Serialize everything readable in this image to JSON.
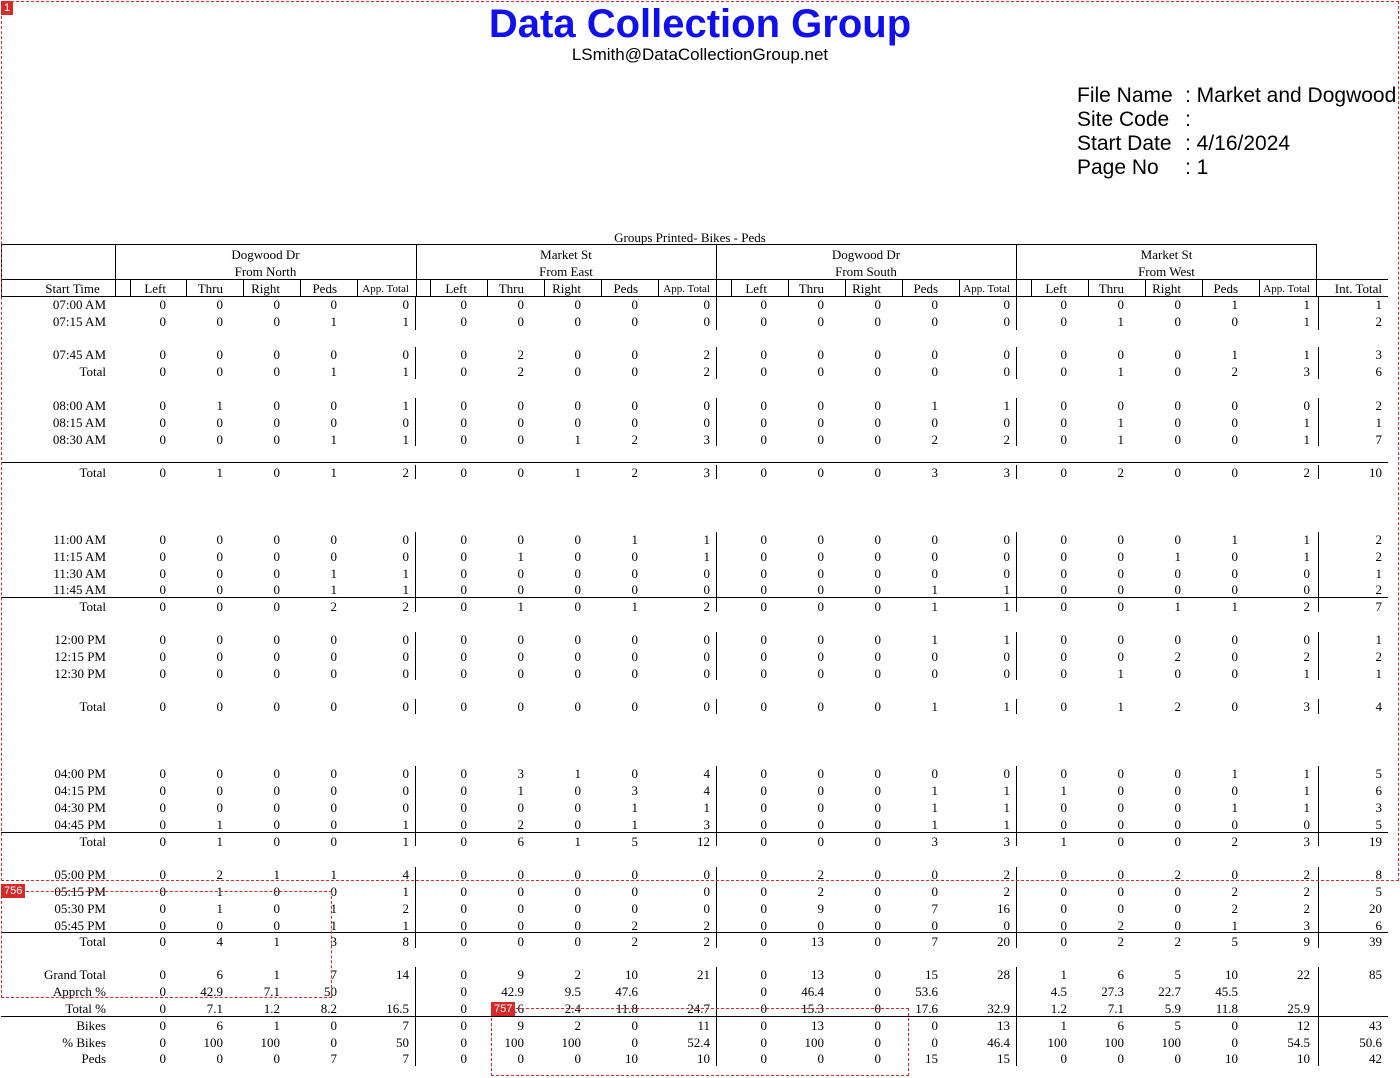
{
  "header": {
    "title": "Data Collection Group",
    "email": "LSmith@DataCollectionGroup.net",
    "meta": [
      {
        "label": "File Name",
        "value": ": Market and Dogwood"
      },
      {
        "label": "Site Code",
        "value": ":"
      },
      {
        "label": "Start Date",
        "value": ": 4/16/2024"
      },
      {
        "label": "Page No",
        "value": ": 1"
      }
    ],
    "groups_printed": "Groups Printed- Bikes - Peds"
  },
  "approaches": [
    {
      "street": "Dogwood Dr",
      "direction": "From North"
    },
    {
      "street": "Market St",
      "direction": "From East"
    },
    {
      "street": "Dogwood Dr",
      "direction": "From South"
    },
    {
      "street": "Market St",
      "direction": "From West"
    }
  ],
  "columns": {
    "start_time": "Start Time",
    "movements": [
      "Left",
      "Thru",
      "Right",
      "Peds",
      "App. Total"
    ],
    "int_total": "Int. Total"
  },
  "rows": [
    {
      "label": "07:00 AM",
      "values": [
        "0",
        "0",
        "0",
        "0",
        "0",
        "0",
        "0",
        "0",
        "0",
        "0",
        "0",
        "0",
        "0",
        "0",
        "0",
        "0",
        "0",
        "0",
        "1",
        "1",
        "1"
      ]
    },
    {
      "label": "07:15 AM",
      "values": [
        "0",
        "0",
        "0",
        "1",
        "1",
        "0",
        "0",
        "0",
        "0",
        "0",
        "0",
        "0",
        "0",
        "0",
        "0",
        "0",
        "1",
        "0",
        "0",
        "1",
        "2"
      ]
    },
    {
      "label": "07:45 AM",
      "values": [
        "0",
        "0",
        "0",
        "0",
        "0",
        "0",
        "2",
        "0",
        "0",
        "2",
        "0",
        "0",
        "0",
        "0",
        "0",
        "0",
        "0",
        "0",
        "1",
        "1",
        "3"
      ]
    },
    {
      "label": "Total",
      "values": [
        "0",
        "0",
        "0",
        "1",
        "1",
        "0",
        "2",
        "0",
        "0",
        "2",
        "0",
        "0",
        "0",
        "0",
        "0",
        "0",
        "1",
        "0",
        "2",
        "3",
        "6"
      ]
    },
    {
      "label": "08:00 AM",
      "values": [
        "0",
        "1",
        "0",
        "0",
        "1",
        "0",
        "0",
        "0",
        "0",
        "0",
        "0",
        "0",
        "0",
        "1",
        "1",
        "0",
        "0",
        "0",
        "0",
        "0",
        "2"
      ]
    },
    {
      "label": "08:15 AM",
      "values": [
        "0",
        "0",
        "0",
        "0",
        "0",
        "0",
        "0",
        "0",
        "0",
        "0",
        "0",
        "0",
        "0",
        "0",
        "0",
        "0",
        "1",
        "0",
        "0",
        "1",
        "1"
      ]
    },
    {
      "label": "08:30 AM",
      "values": [
        "0",
        "0",
        "0",
        "1",
        "1",
        "0",
        "0",
        "1",
        "2",
        "3",
        "0",
        "0",
        "0",
        "2",
        "2",
        "0",
        "1",
        "0",
        "0",
        "1",
        "7"
      ]
    },
    {
      "label": "Total",
      "values": [
        "0",
        "1",
        "0",
        "1",
        "2",
        "0",
        "0",
        "1",
        "2",
        "3",
        "0",
        "0",
        "0",
        "3",
        "3",
        "0",
        "2",
        "0",
        "0",
        "2",
        "10"
      ]
    },
    {
      "label": "11:00 AM",
      "values": [
        "0",
        "0",
        "0",
        "0",
        "0",
        "0",
        "0",
        "0",
        "1",
        "1",
        "0",
        "0",
        "0",
        "0",
        "0",
        "0",
        "0",
        "0",
        "1",
        "1",
        "2"
      ]
    },
    {
      "label": "11:15 AM",
      "values": [
        "0",
        "0",
        "0",
        "0",
        "0",
        "0",
        "1",
        "0",
        "0",
        "1",
        "0",
        "0",
        "0",
        "0",
        "0",
        "0",
        "0",
        "1",
        "0",
        "1",
        "2"
      ]
    },
    {
      "label": "11:30 AM",
      "values": [
        "0",
        "0",
        "0",
        "1",
        "1",
        "0",
        "0",
        "0",
        "0",
        "0",
        "0",
        "0",
        "0",
        "0",
        "0",
        "0",
        "0",
        "0",
        "0",
        "0",
        "1"
      ]
    },
    {
      "label": "11:45 AM",
      "values": [
        "0",
        "0",
        "0",
        "1",
        "1",
        "0",
        "0",
        "0",
        "0",
        "0",
        "0",
        "0",
        "0",
        "1",
        "1",
        "0",
        "0",
        "0",
        "0",
        "0",
        "2"
      ]
    },
    {
      "label": "Total",
      "values": [
        "0",
        "0",
        "0",
        "2",
        "2",
        "0",
        "1",
        "0",
        "1",
        "2",
        "0",
        "0",
        "0",
        "1",
        "1",
        "0",
        "0",
        "1",
        "1",
        "2",
        "7"
      ]
    },
    {
      "label": "12:00 PM",
      "values": [
        "0",
        "0",
        "0",
        "0",
        "0",
        "0",
        "0",
        "0",
        "0",
        "0",
        "0",
        "0",
        "0",
        "1",
        "1",
        "0",
        "0",
        "0",
        "0",
        "0",
        "1"
      ]
    },
    {
      "label": "12:15 PM",
      "values": [
        "0",
        "0",
        "0",
        "0",
        "0",
        "0",
        "0",
        "0",
        "0",
        "0",
        "0",
        "0",
        "0",
        "0",
        "0",
        "0",
        "0",
        "2",
        "0",
        "2",
        "2"
      ]
    },
    {
      "label": "12:30 PM",
      "values": [
        "0",
        "0",
        "0",
        "0",
        "0",
        "0",
        "0",
        "0",
        "0",
        "0",
        "0",
        "0",
        "0",
        "0",
        "0",
        "0",
        "1",
        "0",
        "0",
        "1",
        "1"
      ]
    },
    {
      "label": "Total",
      "values": [
        "0",
        "0",
        "0",
        "0",
        "0",
        "0",
        "0",
        "0",
        "0",
        "0",
        "0",
        "0",
        "0",
        "1",
        "1",
        "0",
        "1",
        "2",
        "0",
        "3",
        "4"
      ]
    },
    {
      "label": "04:00 PM",
      "values": [
        "0",
        "0",
        "0",
        "0",
        "0",
        "0",
        "3",
        "1",
        "0",
        "4",
        "0",
        "0",
        "0",
        "0",
        "0",
        "0",
        "0",
        "0",
        "1",
        "1",
        "5"
      ]
    },
    {
      "label": "04:15 PM",
      "values": [
        "0",
        "0",
        "0",
        "0",
        "0",
        "0",
        "1",
        "0",
        "3",
        "4",
        "0",
        "0",
        "0",
        "1",
        "1",
        "1",
        "0",
        "0",
        "0",
        "1",
        "6"
      ]
    },
    {
      "label": "04:30 PM",
      "values": [
        "0",
        "0",
        "0",
        "0",
        "0",
        "0",
        "0",
        "0",
        "1",
        "1",
        "0",
        "0",
        "0",
        "1",
        "1",
        "0",
        "0",
        "0",
        "1",
        "1",
        "3"
      ]
    },
    {
      "label": "04:45 PM",
      "values": [
        "0",
        "1",
        "0",
        "0",
        "1",
        "0",
        "2",
        "0",
        "1",
        "3",
        "0",
        "0",
        "0",
        "1",
        "1",
        "0",
        "0",
        "0",
        "0",
        "0",
        "5"
      ]
    },
    {
      "label": "Total",
      "values": [
        "0",
        "1",
        "0",
        "0",
        "1",
        "0",
        "6",
        "1",
        "5",
        "12",
        "0",
        "0",
        "0",
        "3",
        "3",
        "1",
        "0",
        "0",
        "2",
        "3",
        "19"
      ]
    },
    {
      "label": "05:00 PM",
      "values": [
        "0",
        "2",
        "1",
        "1",
        "4",
        "0",
        "0",
        "0",
        "0",
        "0",
        "0",
        "2",
        "0",
        "0",
        "2",
        "0",
        "0",
        "2",
        "0",
        "2",
        "8"
      ]
    },
    {
      "label": "05:15 PM",
      "values": [
        "0",
        "1",
        "0",
        "0",
        "1",
        "0",
        "0",
        "0",
        "0",
        "0",
        "0",
        "2",
        "0",
        "0",
        "2",
        "0",
        "0",
        "0",
        "2",
        "2",
        "5"
      ]
    },
    {
      "label": "05:30 PM",
      "values": [
        "0",
        "1",
        "0",
        "1",
        "2",
        "0",
        "0",
        "0",
        "0",
        "0",
        "0",
        "9",
        "0",
        "7",
        "16",
        "0",
        "0",
        "0",
        "2",
        "2",
        "20"
      ]
    },
    {
      "label": "05:45 PM",
      "values": [
        "0",
        "0",
        "0",
        "1",
        "1",
        "0",
        "0",
        "0",
        "2",
        "2",
        "0",
        "0",
        "0",
        "0",
        "0",
        "0",
        "2",
        "0",
        "1",
        "3",
        "6"
      ]
    },
    {
      "label": "Total",
      "values": [
        "0",
        "4",
        "1",
        "3",
        "8",
        "0",
        "0",
        "0",
        "2",
        "2",
        "0",
        "13",
        "0",
        "7",
        "20",
        "0",
        "2",
        "2",
        "5",
        "9",
        "39"
      ]
    },
    {
      "label": "Grand Total",
      "values": [
        "0",
        "6",
        "1",
        "7",
        "14",
        "0",
        "9",
        "2",
        "10",
        "21",
        "0",
        "13",
        "0",
        "15",
        "28",
        "1",
        "6",
        "5",
        "10",
        "22",
        "85"
      ]
    },
    {
      "label": "Apprch %",
      "values": [
        "0",
        "42.9",
        "7.1",
        "50",
        "",
        "0",
        "42.9",
        "9.5",
        "47.6",
        "",
        "0",
        "46.4",
        "0",
        "53.6",
        "",
        "4.5",
        "27.3",
        "22.7",
        "45.5",
        "",
        ""
      ]
    },
    {
      "label": "Total %",
      "values": [
        "0",
        "7.1",
        "1.2",
        "8.2",
        "16.5",
        "0",
        "10.6",
        "2.4",
        "11.8",
        "24.7",
        "0",
        "15.3",
        "0",
        "17.6",
        "32.9",
        "1.2",
        "7.1",
        "5.9",
        "11.8",
        "25.9",
        ""
      ]
    },
    {
      "label": "Bikes",
      "values": [
        "0",
        "6",
        "1",
        "0",
        "7",
        "0",
        "9",
        "2",
        "0",
        "11",
        "0",
        "13",
        "0",
        "0",
        "13",
        "1",
        "6",
        "5",
        "0",
        "12",
        "43"
      ]
    },
    {
      "label": "% Bikes",
      "values": [
        "0",
        "100",
        "100",
        "0",
        "50",
        "0",
        "100",
        "100",
        "0",
        "52.4",
        "0",
        "100",
        "0",
        "0",
        "46.4",
        "100",
        "100",
        "100",
        "0",
        "54.5",
        "50.6"
      ]
    },
    {
      "label": "Peds",
      "values": [
        "0",
        "0",
        "0",
        "7",
        "7",
        "0",
        "0",
        "0",
        "10",
        "10",
        "0",
        "0",
        "0",
        "15",
        "15",
        "0",
        "0",
        "0",
        "10",
        "10",
        "42"
      ]
    }
  ],
  "annotations": [
    "1",
    "756",
    "757"
  ]
}
